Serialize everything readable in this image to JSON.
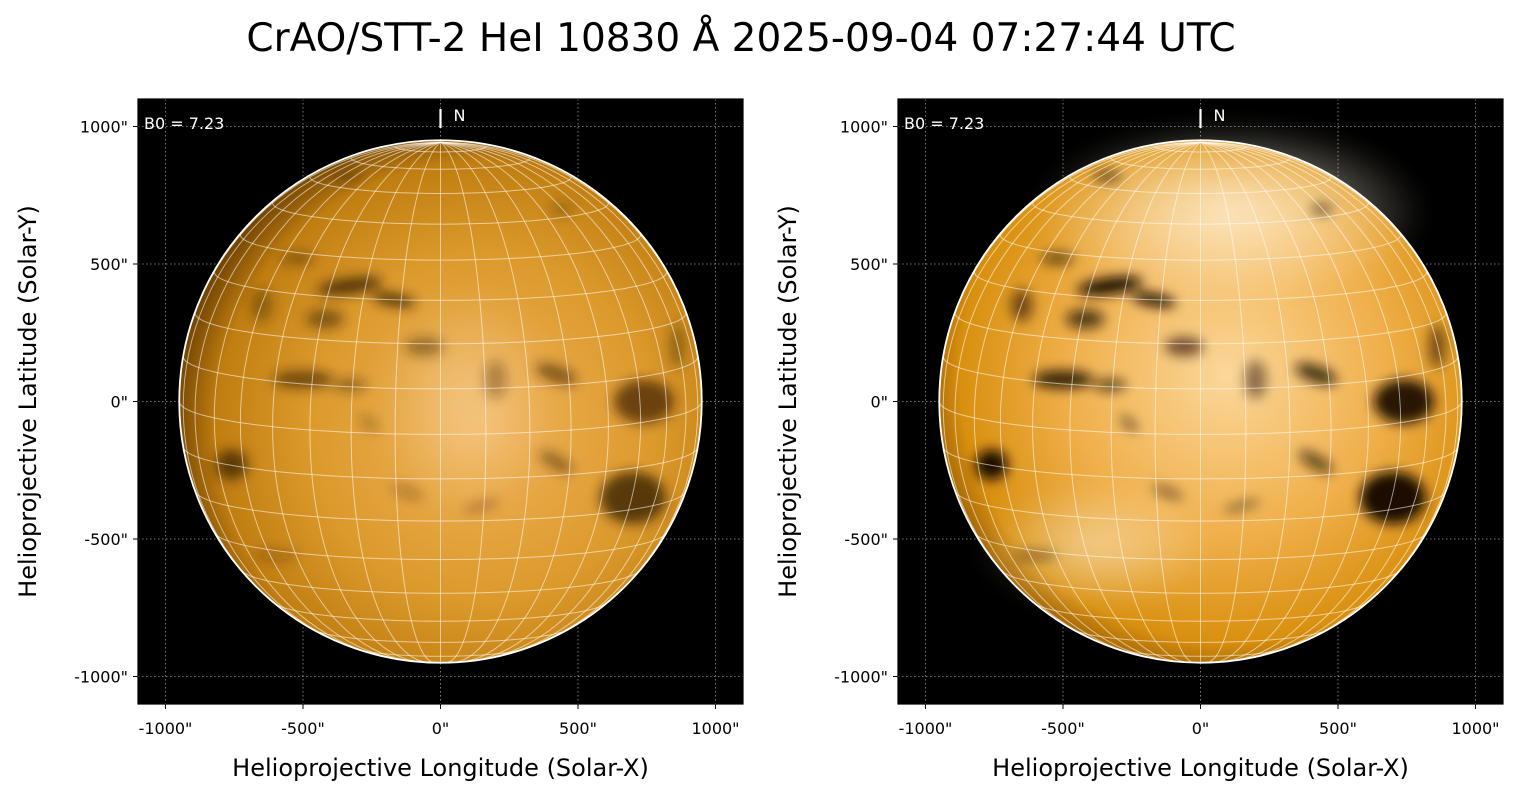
{
  "title": "CrAO/STT-2 HeI 10830 Å 2025-09-04 07:27:44 UTC",
  "colors": {
    "background": "#000000",
    "disk_orange": "#d9900f",
    "grid": "#ffffff"
  },
  "panels": [
    {
      "b0_label": "B0 = 7.23",
      "north_label": "N",
      "xlabel": "Helioprojective Longitude (Solar-X)",
      "ylabel": "Helioprojective Latitude (Solar-Y)",
      "x_ticks": [
        "-1000\"",
        "-500\"",
        "0\"",
        "500\"",
        "1000\""
      ],
      "y_ticks": [
        "1000\"",
        "500\"",
        "0\"",
        "-500\"",
        "-1000\""
      ],
      "contrast": "normal"
    },
    {
      "b0_label": "B0 = 7.23",
      "north_label": "N",
      "xlabel": "Helioprojective Longitude (Solar-X)",
      "ylabel": "Helioprojective Latitude (Solar-Y)",
      "x_ticks": [
        "-1000\"",
        "-500\"",
        "0\"",
        "500\"",
        "1000\""
      ],
      "y_ticks": [
        "1000\"",
        "500\"",
        "0\"",
        "-500\"",
        "-1000\""
      ],
      "contrast": "enhanced"
    }
  ]
}
